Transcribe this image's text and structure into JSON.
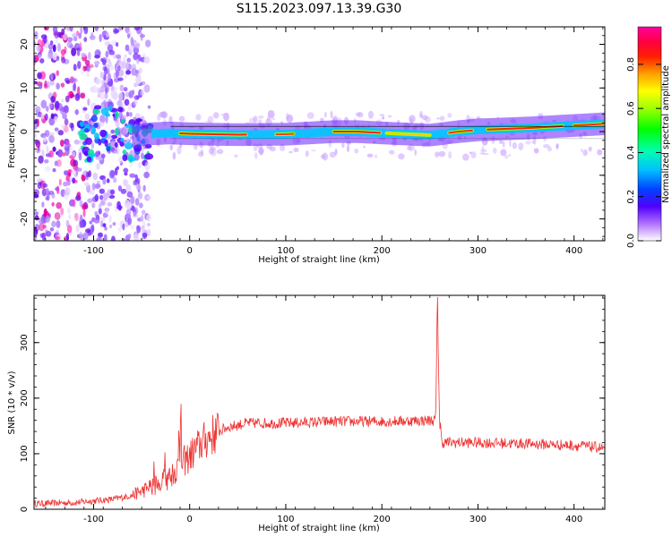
{
  "figure": {
    "title": "S115.2023.097.13.39.G30"
  },
  "chart_data": [
    {
      "type": "heatmap",
      "xlabel": "Height of straight line (km)",
      "ylabel": "Frequency (Hz)",
      "xlim": [
        -162,
        432
      ],
      "ylim": [
        -25,
        24
      ],
      "xticks": [
        -100,
        0,
        100,
        200,
        300,
        400
      ],
      "yticks": [
        -20,
        -10,
        0,
        10,
        20
      ],
      "grid": false,
      "colorbar": {
        "label": "Normalized spectral amplitude",
        "range": [
          0,
          0.97
        ],
        "ticks": [
          "0.0",
          "0.2",
          "0.4",
          "0.6",
          "0.8"
        ],
        "colormap": "gist_ncar-like (white → purple → blue → cyan → green → yellow → red → magenta)"
      },
      "ridge_frequency": {
        "x": [
          -60,
          -40,
          -20,
          0,
          50,
          100,
          150,
          175,
          200,
          250,
          280,
          300,
          350,
          400,
          432
        ],
        "y": [
          -1,
          -0.5,
          -0.3,
          -0.5,
          -0.7,
          -0.6,
          0,
          0,
          -0.3,
          -0.8,
          0,
          0.4,
          0.8,
          1.4,
          1.8
        ]
      }
    },
    {
      "type": "line",
      "xlabel": "Height of straight line (km)",
      "ylabel": "SNR (10 * v/v)",
      "xlim": [
        -162,
        432
      ],
      "ylim": [
        0,
        385
      ],
      "xticks": [
        -100,
        0,
        100,
        200,
        300,
        400
      ],
      "yticks": [
        0,
        100,
        200,
        300
      ],
      "grid": false,
      "series": [
        {
          "color": "#ee3333",
          "x": [
            -162,
            -120,
            -80,
            -60,
            -40,
            -20,
            -10,
            0,
            10,
            20,
            30,
            40,
            60,
            100,
            150,
            200,
            250,
            256,
            258,
            260,
            262,
            300,
            350,
            400,
            432
          ],
          "y": [
            10,
            12,
            18,
            25,
            40,
            60,
            80,
            95,
            115,
            130,
            140,
            148,
            155,
            155,
            158,
            158,
            160,
            160,
            385,
            160,
            120,
            120,
            118,
            115,
            110
          ]
        }
      ]
    }
  ]
}
